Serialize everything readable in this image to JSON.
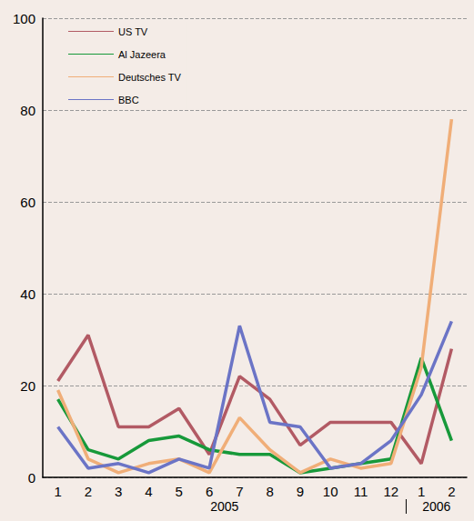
{
  "chart_data": {
    "type": "line",
    "categories": [
      "1",
      "2",
      "3",
      "4",
      "5",
      "6",
      "7",
      "8",
      "9",
      "10",
      "11",
      "12",
      "1",
      "2"
    ],
    "groups": [
      {
        "label": "2005",
        "span": 12
      },
      {
        "label": "2006",
        "span": 2
      }
    ],
    "series": [
      {
        "name": "US TV",
        "color": "#b25a64",
        "values": [
          21,
          31,
          11,
          11,
          15,
          5,
          22,
          17,
          7,
          12,
          12,
          12,
          3,
          28
        ]
      },
      {
        "name": "Al Jazeera",
        "color": "#17993a",
        "values": [
          17,
          6,
          4,
          8,
          9,
          6,
          5,
          5,
          1,
          2,
          3,
          4,
          26,
          8
        ]
      },
      {
        "name": "Deutsches TV",
        "color": "#f0ae78",
        "values": [
          19,
          4,
          1,
          3,
          4,
          1,
          13,
          6,
          1,
          4,
          2,
          3,
          24,
          78
        ]
      },
      {
        "name": "BBC",
        "color": "#6b74c6",
        "values": [
          11,
          2,
          3,
          1,
          4,
          2,
          33,
          12,
          11,
          2,
          3,
          8,
          18,
          34
        ]
      }
    ],
    "ylim": [
      0,
      100
    ],
    "yticks": [
      0,
      20,
      40,
      60,
      80,
      100
    ],
    "grid": true,
    "legend": "top-left"
  }
}
